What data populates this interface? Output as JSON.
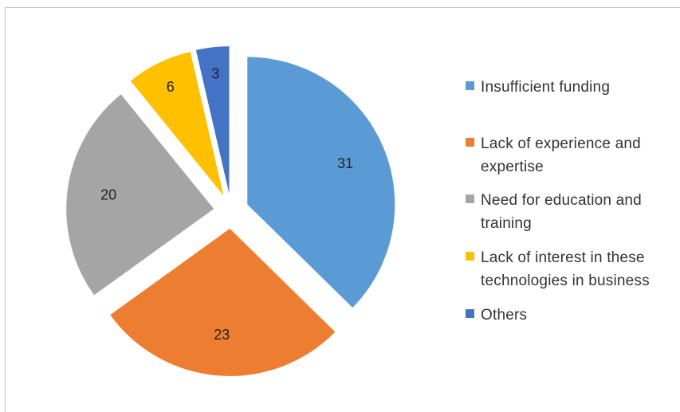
{
  "chart_data": {
    "type": "pie",
    "exploded": true,
    "legend_position": "right",
    "slices": [
      {
        "label": "Insufficient funding",
        "value": 31,
        "color": "#5B9BD5"
      },
      {
        "label": "Lack of experience and expertise",
        "value": 23,
        "color": "#ED7D31"
      },
      {
        "label": "Need for education and training",
        "value": 20,
        "color": "#A5A5A5"
      },
      {
        "label": "Lack of interest in these technologies in business",
        "value": 6,
        "color": "#FFC000"
      },
      {
        "label": "Others",
        "value": 3,
        "color": "#4472C4"
      }
    ]
  },
  "legend": {
    "items": [
      {
        "line1": "Insufficient funding",
        "line2": ""
      },
      {
        "line1": "Lack of experience and",
        "line2": "expertise"
      },
      {
        "line1": "Need for education and",
        "line2": "training"
      },
      {
        "line1": "Lack of interest in these",
        "line2": "technologies in business"
      },
      {
        "line1": "Others",
        "line2": ""
      }
    ]
  }
}
